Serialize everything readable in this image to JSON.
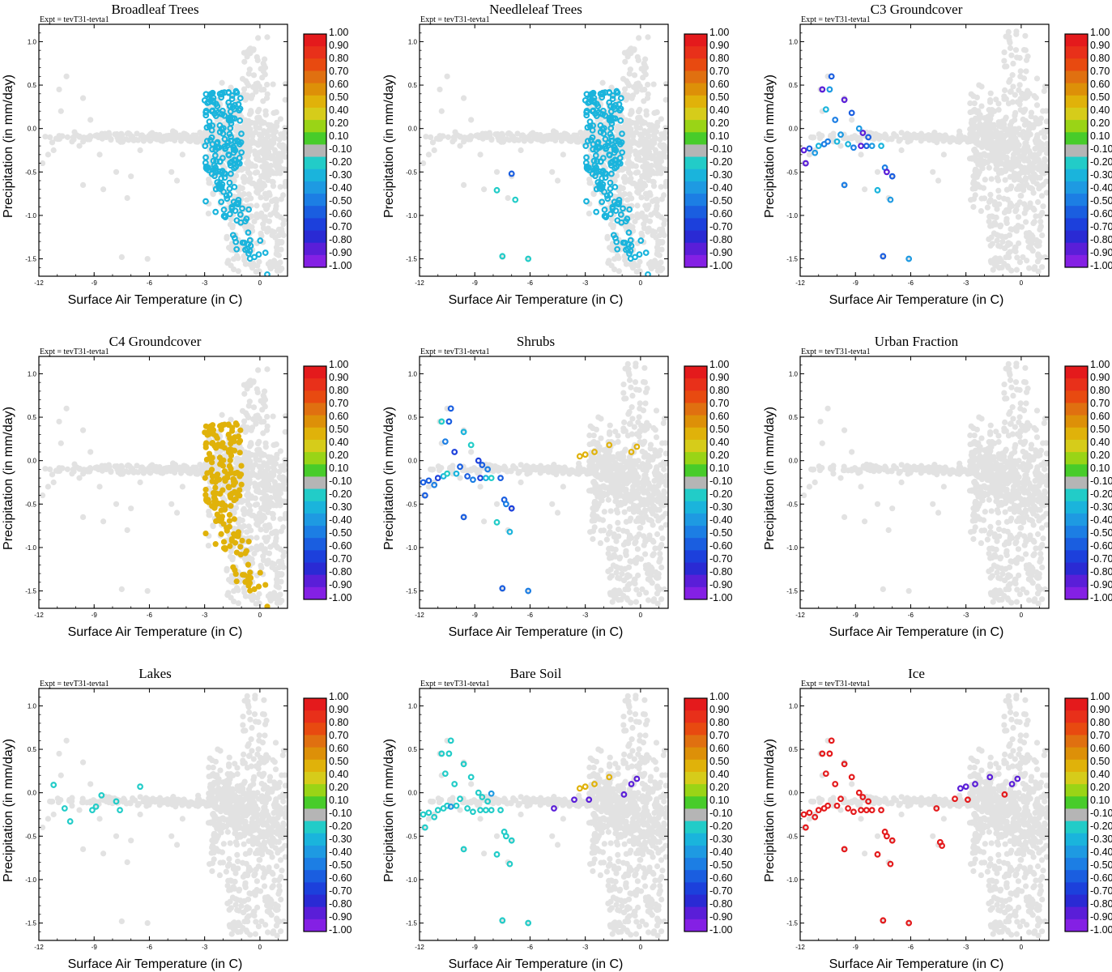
{
  "chart_data": [
    {
      "type": "scatter",
      "title": "Broadleaf Trees",
      "annotation": "Expt = tevT31-tevta1",
      "xlabel": "Surface Air Temperature (in C)",
      "ylabel": "Precipitation (in mm/day)",
      "xlim": [
        -12,
        1.5
      ],
      "ylim": [
        -1.7,
        1.2
      ],
      "xticks": [
        "-12",
        "-9",
        "-6",
        "-3",
        "0"
      ],
      "yticks": [
        "1.0",
        "0.5",
        "0.0",
        "-0.5",
        "-1.0",
        "-1.5"
      ],
      "cluster": "broad",
      "highlight": [
        {
          "group": "treeStrip",
          "value": -0.25
        }
      ]
    },
    {
      "type": "scatter",
      "title": "Needleleaf Trees",
      "annotation": "Expt = tevT31-tevta1",
      "xlabel": "Surface Air Temperature (in C)",
      "ylabel": "Precipitation (in mm/day)",
      "xlim": [
        -12,
        1.5
      ],
      "ylim": [
        -1.7,
        1.2
      ],
      "xticks": [
        "-12",
        "-9",
        "-6",
        "-3",
        "0"
      ],
      "yticks": [
        "1.0",
        "0.5",
        "0.0",
        "-0.5",
        "-1.0",
        "-1.5"
      ],
      "cluster": "broad",
      "highlight": [
        {
          "group": "treeStrip",
          "value": -0.25
        }
      ],
      "extra_points": [
        {
          "x": -7.0,
          "y": -0.52,
          "value": -0.6
        },
        {
          "x": -7.8,
          "y": -0.71,
          "value": -0.1
        },
        {
          "x": -6.8,
          "y": -0.82,
          "value": -0.1
        },
        {
          "x": -7.5,
          "y": -1.47,
          "value": -0.1
        },
        {
          "x": -6.1,
          "y": -1.5,
          "value": -0.1
        }
      ]
    },
    {
      "type": "scatter",
      "title": "C3 Groundcover",
      "annotation": "Expt = tevT31-tevta1",
      "xlabel": "Surface Air Temperature (in C)",
      "ylabel": "Precipitation (in mm/day)",
      "xlim": [
        -12,
        1.5
      ],
      "ylim": [
        -1.7,
        1.2
      ],
      "xticks": [
        "-12",
        "-9",
        "-6",
        "-3",
        "0"
      ],
      "yticks": [
        "1.0",
        "0.5",
        "0.0",
        "-0.5",
        "-1.0",
        "-1.5"
      ],
      "cluster": "right",
      "highlight": [
        {
          "group": "coldLeft",
          "values": [
            -0.85,
            -0.55,
            -0.3,
            -0.25,
            -0.45
          ]
        }
      ]
    },
    {
      "type": "scatter",
      "title": "C4 Groundcover",
      "annotation": "Expt = tevT31-tevta1",
      "xlabel": "Surface Air Temperature (in C)",
      "ylabel": "Precipitation (in mm/day)",
      "xlim": [
        -12,
        1.5
      ],
      "ylim": [
        -1.7,
        1.2
      ],
      "xticks": [
        "-12",
        "-9",
        "-6",
        "-3",
        "0"
      ],
      "yticks": [
        "1.0",
        "0.5",
        "0.0",
        "-0.5",
        "-1.0",
        "-1.5"
      ],
      "cluster": "broad",
      "highlight": [
        {
          "group": "treeStrip",
          "value": 0.5
        }
      ]
    },
    {
      "type": "scatter",
      "title": "Shrubs",
      "annotation": "Expt = tevT31-tevta1",
      "xlabel": "Surface Air Temperature (in C)",
      "ylabel": "Precipitation (in mm/day)",
      "xlim": [
        -12,
        1.5
      ],
      "ylim": [
        -1.7,
        1.2
      ],
      "xticks": [
        "-12",
        "-9",
        "-6",
        "-3",
        "0"
      ],
      "yticks": [
        "1.0",
        "0.5",
        "0.0",
        "-0.5",
        "-1.0",
        "-1.5"
      ],
      "cluster": "right",
      "highlight": [
        {
          "group": "coldLeft",
          "values": [
            -0.6,
            -0.55,
            -0.45,
            -0.7,
            -0.25,
            -0.1
          ]
        },
        {
          "group": "warmArc",
          "values": [
            0.5
          ]
        }
      ]
    },
    {
      "type": "scatter",
      "title": "Urban Fraction",
      "annotation": "Expt = tevT31-tevta1",
      "xlabel": "Surface Air Temperature (in C)",
      "ylabel": "Precipitation (in mm/day)",
      "xlim": [
        -12,
        1.5
      ],
      "ylim": [
        -1.7,
        1.2
      ],
      "xticks": [
        "-12",
        "-9",
        "-6",
        "-3",
        "0"
      ],
      "yticks": [
        "1.0",
        "0.5",
        "0.0",
        "-0.5",
        "-1.0",
        "-1.5"
      ],
      "cluster": "right",
      "highlight": []
    },
    {
      "type": "scatter",
      "title": "Lakes",
      "annotation": "Expt = tevT31-tevta1",
      "xlabel": "Surface Air Temperature (in C)",
      "ylabel": "Precipitation (in mm/day)",
      "xlim": [
        -12,
        1.5
      ],
      "ylim": [
        -1.7,
        1.2
      ],
      "xticks": [
        "-12",
        "-9",
        "-6",
        "-3",
        "0"
      ],
      "yticks": [
        "1.0",
        "0.5",
        "0.0",
        "-0.5",
        "-1.0",
        "-1.5"
      ],
      "cluster": "right",
      "highlight": [],
      "extra_points": [
        {
          "x": -11.2,
          "y": 0.09,
          "value": -0.1
        },
        {
          "x": -10.6,
          "y": -0.18,
          "value": -0.1
        },
        {
          "x": -10.3,
          "y": -0.33,
          "value": -0.1
        },
        {
          "x": -9.1,
          "y": -0.2,
          "value": -0.1
        },
        {
          "x": -8.9,
          "y": -0.16,
          "value": -0.1
        },
        {
          "x": -8.6,
          "y": -0.03,
          "value": -0.1
        },
        {
          "x": -7.8,
          "y": -0.1,
          "value": -0.1
        },
        {
          "x": -7.6,
          "y": -0.2,
          "value": -0.1
        },
        {
          "x": -6.5,
          "y": 0.07,
          "value": -0.1
        }
      ]
    },
    {
      "type": "scatter",
      "title": "Bare Soil",
      "annotation": "Expt = tevT31-tevta1",
      "xlabel": "Surface Air Temperature (in C)",
      "ylabel": "Precipitation (in mm/day)",
      "xlim": [
        -12,
        1.5
      ],
      "ylim": [
        -1.7,
        1.2
      ],
      "xticks": [
        "-12",
        "-9",
        "-6",
        "-3",
        "0"
      ],
      "yticks": [
        "1.0",
        "0.5",
        "0.0",
        "-0.5",
        "-1.0",
        "-1.5"
      ],
      "cluster": "right",
      "highlight": [
        {
          "group": "coldLeft",
          "values": [
            -0.1
          ]
        },
        {
          "group": "warmArc",
          "values": [
            0.5,
            0.5,
            0.5,
            0.5,
            -0.9,
            -0.9
          ]
        }
      ],
      "extra_points": [
        {
          "x": -4.7,
          "y": -0.18,
          "value": -0.9
        },
        {
          "x": -3.6,
          "y": -0.08,
          "value": -0.9
        },
        {
          "x": -2.8,
          "y": -0.08,
          "value": -0.9
        },
        {
          "x": -0.9,
          "y": -0.02,
          "value": -0.9
        },
        {
          "x": -8.1,
          "y": -0.01,
          "value": -0.3
        },
        {
          "x": -10.3,
          "y": -0.16,
          "value": -0.3
        }
      ]
    },
    {
      "type": "scatter",
      "title": "Ice",
      "annotation": "Expt = tevT31-tevta1",
      "xlabel": "Surface Air Temperature (in C)",
      "ylabel": "Precipitation (in mm/day)",
      "xlim": [
        -12,
        1.5
      ],
      "ylim": [
        -1.7,
        1.2
      ],
      "xticks": [
        "-12",
        "-9",
        "-6",
        "-3",
        "0"
      ],
      "yticks": [
        "1.0",
        "0.5",
        "0.0",
        "-0.5",
        "-1.0",
        "-1.5"
      ],
      "cluster": "right",
      "highlight": [
        {
          "group": "coldLeft",
          "values": [
            1.0
          ]
        },
        {
          "group": "warmArc",
          "values": [
            -0.9
          ]
        }
      ],
      "extra_points": [
        {
          "x": -4.6,
          "y": -0.18,
          "value": 1.0
        },
        {
          "x": -4.4,
          "y": -0.57,
          "value": 1.0
        },
        {
          "x": -4.3,
          "y": -0.61,
          "value": 1.0
        },
        {
          "x": -3.6,
          "y": -0.07,
          "value": 1.0
        },
        {
          "x": -2.9,
          "y": -0.08,
          "value": 1.0
        },
        {
          "x": -0.9,
          "y": -0.02,
          "value": 1.0
        }
      ]
    }
  ],
  "colorbar": {
    "labels": [
      "1.00",
      "0.90",
      "0.80",
      "0.70",
      "0.60",
      "0.50",
      "0.40",
      "0.20",
      "0.10",
      "-0.10",
      "-0.20",
      "-0.30",
      "-0.40",
      "-0.50",
      "-0.60",
      "-0.70",
      "-0.80",
      "-0.90",
      "-1.00"
    ],
    "colors": [
      "#e41a1c",
      "#e8301a",
      "#e84a10",
      "#e07010",
      "#dd9008",
      "#e0b20a",
      "#d6cc1a",
      "#9ad416",
      "#48cc2a",
      "#b5b5b5",
      "#22ccc8",
      "#1ab4dc",
      "#1e9ae2",
      "#1c7ee4",
      "#1a5ee0",
      "#1c40dc",
      "#2a2ad4",
      "#5a1ed8",
      "#8420e4"
    ]
  },
  "background_color": "#e2e2e2"
}
